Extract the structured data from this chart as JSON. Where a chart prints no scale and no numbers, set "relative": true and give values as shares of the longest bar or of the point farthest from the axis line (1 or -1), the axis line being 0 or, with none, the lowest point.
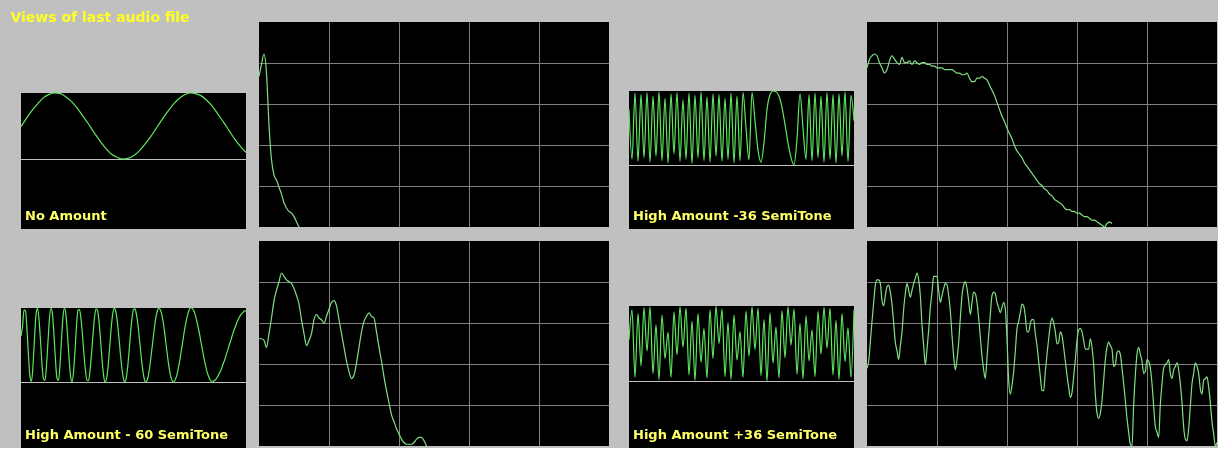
{
  "chart_data": [
    {
      "type": "line",
      "relative": true,
      "title": "Views of last audio file",
      "annotations": [
        "No Amount"
      ],
      "tick_labels": false,
      "categories": [
        null,
        null,
        null,
        null,
        null,
        null,
        null,
        null,
        null,
        null,
        null,
        null,
        null,
        null,
        null,
        null,
        null,
        null,
        null,
        null,
        null,
        null,
        null,
        null,
        null,
        null,
        null,
        null,
        null,
        null,
        null,
        null,
        null,
        null,
        null,
        null,
        null,
        null,
        null,
        null,
        null
      ],
      "series": [
        {
          "color": "#5fe85f",
          "values": [
            0.49,
            0.62,
            0.74,
            0.84,
            0.93,
            0.98,
            1.0,
            0.99,
            0.94,
            0.87,
            0.77,
            0.65,
            0.53,
            0.4,
            0.28,
            0.17,
            0.08,
            0.03,
            0.0,
            0.01,
            0.05,
            0.12,
            0.22,
            0.33,
            0.46,
            0.59,
            0.71,
            0.82,
            0.91,
            0.97,
            1.0,
            0.99,
            0.96,
            0.89,
            0.8,
            0.68,
            0.56,
            0.43,
            0.3,
            0.19,
            0.1
          ]
        }
      ]
    },
    {
      "type": "line",
      "relative": true,
      "grid": true,
      "tick_labels": false,
      "categories": [
        null,
        null,
        null,
        null,
        null,
        null,
        null,
        null,
        null,
        null,
        null,
        null,
        null,
        null,
        null,
        null,
        null,
        null,
        null,
        null,
        null,
        null,
        null,
        null,
        null,
        null,
        null,
        null,
        null,
        null,
        null,
        null,
        null,
        null,
        null,
        null,
        null,
        null,
        null,
        null,
        null,
        null,
        null,
        null,
        null,
        null,
        null,
        null,
        null,
        null,
        null,
        null,
        null,
        null,
        null,
        null,
        null,
        null,
        null,
        null,
        null,
        null,
        null,
        null,
        null,
        null,
        null,
        null,
        null,
        null,
        null,
        null,
        null,
        null,
        null,
        null,
        null,
        null,
        null,
        null,
        null,
        null,
        null,
        null,
        null,
        null,
        null,
        null,
        null,
        null,
        null,
        null,
        null,
        null,
        null,
        null,
        null,
        null,
        null,
        null,
        null,
        null,
        null,
        null,
        null,
        null,
        null,
        null,
        null,
        null,
        null,
        null,
        null,
        null,
        null,
        null,
        null,
        null,
        null,
        null,
        null,
        null,
        null,
        null,
        null,
        null,
        null,
        null,
        null,
        null,
        null,
        null,
        null,
        null,
        null,
        null,
        null,
        null,
        null,
        null,
        null
      ],
      "series": [
        {
          "color": "#80e080",
          "values": [
            0.87,
            0.94,
            1.0,
            0.89,
            0.59,
            0.39,
            0.3,
            0.27,
            0.23,
            0.19,
            0.14,
            0.11,
            0.09,
            0.08,
            0.06,
            0.03,
            0.0,
            null,
            null,
            null,
            null,
            null,
            null,
            null,
            null,
            null,
            null,
            null,
            null,
            null,
            null,
            null,
            null,
            null,
            null,
            null,
            null,
            null,
            null,
            null,
            null,
            null,
            null,
            null,
            null,
            null,
            null,
            null,
            null,
            null,
            null,
            null,
            null,
            null,
            null,
            null,
            null,
            null,
            null,
            null,
            null,
            null,
            null,
            null,
            null,
            null,
            null,
            null,
            null,
            null,
            null,
            null,
            null,
            null,
            null,
            null,
            null,
            null,
            null,
            null,
            null,
            null,
            null,
            null,
            null,
            null,
            null,
            null,
            null,
            null,
            null,
            null,
            null,
            null,
            null,
            null,
            null,
            null,
            null,
            null,
            null,
            null,
            null,
            null,
            null,
            null,
            null,
            null,
            null,
            null,
            null,
            null,
            null,
            null,
            null,
            null,
            null,
            null,
            null,
            null,
            null,
            null,
            null,
            null,
            null,
            null,
            null,
            null,
            null,
            null,
            null,
            null,
            null,
            null,
            null,
            null,
            null,
            null,
            null,
            null,
            null
          ]
        }
      ]
    },
    {
      "type": "line",
      "relative": true,
      "annotations": [
        "High Amount -36 SemiTone"
      ],
      "tick_labels": false,
      "categories": [
        null,
        null,
        null,
        null,
        null,
        null,
        null,
        null,
        null,
        null,
        null,
        null,
        null,
        null,
        null,
        null,
        null,
        null,
        null,
        null,
        null,
        null,
        null,
        null,
        null,
        null,
        null,
        null,
        null,
        null,
        null,
        null,
        null,
        null,
        null,
        null,
        null,
        null,
        null,
        null,
        null,
        null,
        null,
        null,
        null,
        null,
        null,
        null,
        null,
        null,
        null,
        null,
        null,
        null,
        null,
        null,
        null,
        null,
        null,
        null,
        null,
        null,
        null,
        null,
        null,
        null,
        null,
        null,
        null,
        null,
        null,
        null,
        null,
        null,
        null,
        null
      ],
      "series": [
        {
          "color": "#5fe85f",
          "values": [
            0.75,
            0.08,
            0.97,
            0.05,
            0.95,
            0.1,
            0.98,
            0.04,
            0.93,
            0.12,
            0.99,
            0.06,
            0.9,
            0.03,
            0.96,
            0.15,
            0.98,
            0.05,
            0.88,
            0.08,
            0.97,
            0.02,
            0.94,
            0.1,
            0.99,
            0.06,
            0.92,
            0.04,
            0.96,
            0.12,
            0.95,
            0.05,
            0.9,
            0.08,
            0.97,
            0.03,
            0.93,
            0.06,
            0.98,
            0.5,
            0.07,
            0.98,
            0.6,
            0.2,
            0.04,
            0.3,
            0.75,
            0.95,
            1.0,
            0.99,
            0.93,
            0.78,
            0.55,
            0.3,
            0.1,
            0.0,
            0.35,
            0.96,
            0.5,
            0.08,
            0.95,
            0.06,
            0.97,
            0.1,
            0.93,
            0.04,
            0.98,
            0.08,
            0.95,
            0.03,
            0.96,
            0.12,
            0.99,
            0.05,
            0.94,
            0.6
          ]
        }
      ]
    },
    {
      "type": "line",
      "relative": true,
      "grid": true,
      "tick_labels": false,
      "categories": [
        null,
        null,
        null,
        null,
        null,
        null,
        null,
        null,
        null,
        null,
        null,
        null,
        null,
        null,
        null,
        null,
        null,
        null,
        null,
        null,
        null,
        null,
        null,
        null,
        null,
        null,
        null,
        null,
        null,
        null,
        null,
        null,
        null,
        null,
        null,
        null,
        null,
        null,
        null,
        null,
        null,
        null,
        null,
        null,
        null,
        null,
        null,
        null,
        null,
        null,
        null,
        null,
        null,
        null,
        null,
        null,
        null,
        null,
        null,
        null,
        null,
        null,
        null,
        null,
        null,
        null,
        null,
        null,
        null,
        null,
        null,
        null,
        null,
        null,
        null,
        null,
        null,
        null,
        null,
        null,
        null,
        null,
        null,
        null,
        null,
        null,
        null,
        null,
        null,
        null,
        null,
        null,
        null,
        null,
        null,
        null,
        null,
        null,
        null,
        null,
        null,
        null,
        null,
        null,
        null,
        null,
        null,
        null,
        null,
        null,
        null,
        null,
        null,
        null,
        null,
        null,
        null,
        null,
        null,
        null,
        null,
        null,
        null,
        null,
        null,
        null,
        null,
        null,
        null,
        null,
        null,
        null,
        null,
        null,
        null,
        null,
        null,
        null,
        null,
        null,
        null
      ],
      "series": [
        {
          "color": "#80e080",
          "values": [
            0.92,
            0.97,
            0.99,
            1.0,
            0.99,
            0.95,
            0.92,
            0.89,
            0.91,
            0.96,
            0.99,
            0.97,
            0.95,
            0.94,
            0.98,
            0.95,
            0.95,
            0.96,
            0.94,
            0.96,
            0.95,
            0.94,
            0.95,
            0.95,
            0.94,
            0.94,
            0.93,
            0.93,
            0.92,
            0.92,
            0.92,
            0.91,
            0.91,
            0.91,
            0.91,
            0.9,
            0.89,
            0.89,
            0.88,
            0.88,
            0.89,
            0.86,
            0.84,
            0.84,
            0.86,
            0.86,
            0.87,
            0.86,
            0.85,
            0.82,
            0.79,
            0.76,
            0.72,
            0.68,
            0.64,
            0.61,
            0.57,
            0.54,
            0.51,
            0.47,
            0.44,
            0.42,
            0.4,
            0.37,
            0.35,
            0.33,
            0.31,
            0.29,
            0.27,
            0.25,
            0.24,
            0.22,
            0.21,
            0.19,
            0.18,
            0.16,
            0.15,
            0.14,
            0.13,
            0.11,
            0.1,
            0.1,
            0.09,
            0.09,
            0.08,
            0.08,
            0.07,
            0.06,
            0.06,
            0.05,
            0.04,
            0.04,
            0.03,
            0.02,
            0.01,
            0.0,
            0.02,
            0.03,
            0.02,
            null,
            null,
            null,
            null,
            null,
            null,
            null,
            null,
            null,
            null,
            null,
            null,
            null,
            null,
            null,
            null,
            null,
            null,
            null,
            null,
            null,
            null,
            null,
            null,
            null,
            null,
            null,
            null,
            null,
            null,
            null,
            null,
            null,
            null,
            null,
            null,
            null,
            null,
            null,
            null,
            null,
            null
          ]
        }
      ]
    },
    {
      "type": "line",
      "relative": true,
      "annotations": [
        "High Amount - 60 SemiTone"
      ],
      "tick_labels": false,
      "categories": [
        null,
        null,
        null,
        null,
        null,
        null,
        null,
        null,
        null,
        null,
        null,
        null,
        null,
        null,
        null,
        null,
        null,
        null,
        null,
        null,
        null,
        null,
        null,
        null,
        null,
        null,
        null,
        null,
        null,
        null,
        null,
        null,
        null,
        null,
        null,
        null,
        null,
        null,
        null,
        null,
        null,
        null,
        null,
        null,
        null,
        null,
        null,
        null,
        null,
        null,
        null,
        null,
        null,
        null,
        null,
        null,
        null,
        null,
        null,
        null,
        null,
        null,
        null,
        null,
        null,
        null,
        null,
        null,
        null,
        null,
        null,
        null,
        null,
        null,
        null,
        null,
        null,
        null,
        null,
        null,
        null,
        null,
        null,
        null,
        null,
        null,
        null,
        null,
        null,
        null,
        null,
        null,
        null,
        null,
        null,
        null,
        null,
        null,
        null,
        null,
        null,
        null,
        null,
        null,
        null,
        null,
        null,
        null,
        null,
        null,
        null,
        null,
        null,
        null,
        null,
        null,
        null,
        null,
        null,
        null,
        null,
        null,
        null,
        null,
        null,
        null,
        null,
        null,
        null,
        null,
        null,
        null,
        null,
        null,
        null,
        null,
        null,
        null,
        null,
        null,
        null,
        null,
        null,
        null,
        null,
        null,
        null,
        null,
        null,
        null,
        null
      ],
      "series": [
        {
          "color": "#5fe85f",
          "values": [
            0.62,
            0.75,
            0.97,
            0.96,
            0.71,
            0.35,
            0.07,
            0.01,
            0.22,
            0.59,
            0.91,
            1.0,
            0.85,
            0.56,
            0.24,
            0.04,
            0.02,
            0.22,
            0.55,
            0.86,
            1.0,
            0.91,
            0.63,
            0.29,
            0.05,
            0.02,
            0.23,
            0.57,
            0.88,
            1.0,
            0.9,
            0.64,
            0.33,
            0.09,
            0.0,
            0.13,
            0.42,
            0.76,
            0.97,
            0.98,
            0.85,
            0.63,
            0.37,
            0.15,
            0.02,
            0.02,
            0.15,
            0.38,
            0.64,
            0.87,
            0.99,
            0.97,
            0.82,
            0.58,
            0.31,
            0.1,
            0.0,
            0.04,
            0.2,
            0.44,
            0.7,
            0.9,
            1.0,
            0.97,
            0.85,
            0.66,
            0.44,
            0.23,
            0.08,
            0.0,
            0.04,
            0.18,
            0.4,
            0.65,
            0.86,
            0.98,
            0.99,
            0.91,
            0.77,
            0.57,
            0.37,
            0.19,
            0.06,
            0.0,
            0.02,
            0.1,
            0.23,
            0.4,
            0.57,
            0.74,
            0.88,
            0.97,
            1.0,
            0.97,
            0.9,
            0.78,
            0.63,
            0.46,
            0.3,
            0.16,
            0.06,
            0.01,
            0.0,
            0.04,
            0.1,
            0.2,
            0.31,
            0.44,
            0.57,
            0.7,
            0.81,
            0.9,
            0.97,
            1.0,
            1.0,
            0.97,
            0.92,
            0.84,
            0.75,
            0.65,
            0.54,
            0.43,
            0.32,
            0.23,
            0.14,
            0.08,
            0.03,
            0.01,
            0.01,
            0.02,
            0.04,
            0.07,
            0.11,
            0.15,
            0.2,
            0.26,
            0.31,
            0.38,
            0.44,
            0.51,
            0.57,
            0.64,
            0.7,
            0.75,
            0.81,
            0.85,
            0.89,
            0.92,
            0.94,
            0.96,
            0.96
          ]
        }
      ]
    },
    {
      "type": "line",
      "relative": true,
      "grid": true,
      "tick_labels": false,
      "categories": [
        null,
        null,
        null,
        null,
        null,
        null,
        null,
        null,
        null,
        null,
        null,
        null,
        null,
        null,
        null,
        null,
        null,
        null,
        null,
        null,
        null,
        null,
        null,
        null,
        null,
        null,
        null,
        null,
        null,
        null,
        null,
        null,
        null,
        null,
        null,
        null,
        null,
        null,
        null,
        null,
        null,
        null,
        null,
        null,
        null,
        null,
        null,
        null,
        null,
        null,
        null,
        null,
        null,
        null,
        null,
        null,
        null,
        null,
        null,
        null,
        null,
        null,
        null,
        null,
        null,
        null,
        null,
        null,
        null,
        null,
        null,
        null,
        null,
        null,
        null,
        null,
        null,
        null,
        null,
        null,
        null,
        null,
        null,
        null,
        null,
        null,
        null,
        null,
        null,
        null,
        null,
        null,
        null,
        null,
        null,
        null,
        null,
        null,
        null,
        null,
        null,
        null,
        null,
        null,
        null,
        null,
        null,
        null,
        null,
        null,
        null,
        null,
        null,
        null,
        null,
        null,
        null,
        null,
        null,
        null,
        null,
        null,
        null,
        null,
        null,
        null,
        null,
        null,
        null,
        null,
        null,
        null,
        null,
        null,
        null,
        null,
        null,
        null,
        null,
        null,
        null
      ],
      "series": [
        {
          "color": "#80e080",
          "values": [
            0.62,
            0.62,
            0.61,
            0.57,
            0.65,
            0.74,
            0.84,
            0.9,
            0.95,
            1.0,
            0.98,
            0.96,
            0.95,
            0.94,
            0.91,
            0.87,
            0.82,
            0.73,
            0.65,
            0.58,
            0.61,
            0.65,
            0.73,
            0.76,
            0.74,
            0.73,
            0.71,
            0.75,
            0.79,
            0.83,
            0.84,
            0.81,
            0.73,
            0.65,
            0.57,
            0.49,
            0.43,
            0.39,
            0.41,
            0.48,
            0.57,
            0.66,
            0.72,
            0.75,
            0.77,
            0.75,
            0.74,
            0.66,
            0.57,
            0.49,
            0.4,
            0.32,
            0.25,
            0.18,
            0.14,
            0.1,
            0.07,
            0.04,
            0.02,
            0.01,
            0.01,
            0.01,
            0.02,
            0.04,
            0.05,
            0.05,
            0.03,
            0.0,
            null,
            null,
            null,
            null,
            null,
            null,
            null,
            null,
            null,
            null,
            null,
            null,
            null,
            null,
            null,
            null,
            null,
            null,
            null,
            null,
            null,
            null,
            null,
            null,
            null,
            null,
            null,
            null,
            null,
            null,
            null,
            null,
            null,
            null,
            null,
            null,
            null,
            null,
            null,
            null,
            null,
            null,
            null,
            null,
            null,
            null,
            null,
            null,
            null,
            null,
            null,
            null,
            null,
            null,
            null,
            null,
            null,
            null,
            null,
            null,
            null,
            null,
            null,
            null,
            null,
            null,
            null,
            null,
            null,
            null,
            null,
            null,
            null
          ]
        }
      ]
    },
    {
      "type": "line",
      "relative": true,
      "annotations": [
        "High Amount +36 SemiTone"
      ],
      "tick_labels": false,
      "categories": [
        null,
        null,
        null,
        null,
        null,
        null,
        null,
        null,
        null,
        null,
        null,
        null,
        null,
        null,
        null,
        null,
        null,
        null,
        null,
        null,
        null,
        null,
        null,
        null,
        null,
        null,
        null,
        null,
        null,
        null,
        null,
        null,
        null,
        null,
        null,
        null,
        null,
        null,
        null,
        null,
        null,
        null,
        null,
        null,
        null,
        null,
        null,
        null,
        null,
        null,
        null,
        null,
        null,
        null,
        null,
        null,
        null,
        null,
        null,
        null,
        null,
        null,
        null,
        null,
        null,
        null,
        null,
        null,
        null,
        null,
        null,
        null,
        null,
        null,
        null,
        null
      ],
      "series": [
        {
          "color": "#5fe85f",
          "values": [
            0.55,
            0.95,
            0.05,
            0.9,
            0.2,
            0.98,
            0.4,
            0.99,
            0.1,
            0.75,
            0.02,
            0.88,
            0.3,
            0.65,
            0.05,
            0.92,
            0.35,
            0.99,
            0.45,
            0.97,
            0.08,
            0.8,
            0.01,
            0.9,
            0.25,
            0.7,
            0.04,
            0.95,
            0.3,
            1.0,
            0.5,
            0.96,
            0.06,
            0.78,
            0.02,
            0.88,
            0.28,
            0.66,
            0.05,
            0.93,
            0.33,
            0.99,
            0.42,
            0.97,
            0.07,
            0.82,
            0.0,
            0.91,
            0.24,
            0.72,
            0.04,
            0.94,
            0.31,
            0.99,
            0.48,
            0.96,
            0.09,
            0.77,
            0.03,
            0.87,
            0.27,
            0.68,
            0.06,
            0.93,
            0.36,
            0.98,
            0.44,
            0.97,
            0.08,
            0.81,
            0.02,
            0.9,
            0.26,
            0.71,
            0.05,
            0.95
          ]
        }
      ]
    },
    {
      "type": "line",
      "relative": true,
      "grid": true,
      "tick_labels": false,
      "categories": [
        null,
        null,
        null,
        null,
        null,
        null,
        null,
        null,
        null,
        null,
        null,
        null,
        null,
        null,
        null,
        null,
        null,
        null,
        null,
        null,
        null,
        null,
        null,
        null,
        null,
        null,
        null,
        null,
        null,
        null,
        null,
        null,
        null,
        null,
        null,
        null,
        null,
        null,
        null,
        null,
        null,
        null,
        null,
        null,
        null,
        null,
        null,
        null,
        null,
        null,
        null,
        null,
        null,
        null,
        null,
        null,
        null,
        null,
        null,
        null,
        null,
        null,
        null,
        null,
        null,
        null,
        null,
        null,
        null,
        null,
        null,
        null,
        null,
        null,
        null,
        null,
        null,
        null,
        null,
        null,
        null,
        null,
        null,
        null,
        null,
        null,
        null,
        null,
        null,
        null,
        null,
        null,
        null,
        null,
        null,
        null,
        null,
        null,
        null,
        null,
        null,
        null,
        null,
        null,
        null,
        null,
        null,
        null,
        null,
        null,
        null,
        null,
        null,
        null,
        null,
        null,
        null,
        null,
        null,
        null,
        null,
        null,
        null,
        null,
        null,
        null,
        null,
        null,
        null,
        null,
        null,
        null,
        null,
        null,
        null,
        null,
        null,
        null,
        null,
        null,
        null,
        null,
        null,
        null,
        null,
        null,
        null,
        null,
        null,
        null,
        null,
        null,
        null,
        null,
        null,
        null,
        null,
        null,
        null,
        null,
        null,
        null,
        null,
        null,
        null,
        null,
        null,
        null,
        null,
        null,
        null,
        null,
        null,
        null,
        null,
        null,
        null,
        null,
        null,
        null,
        null,
        null,
        null,
        null,
        null,
        null,
        null,
        null,
        null,
        null,
        null,
        null,
        null,
        null,
        null,
        null,
        null,
        null,
        null,
        null,
        null,
        null,
        null,
        null,
        null,
        null,
        null,
        null,
        null,
        null,
        null
      ],
      "series": [
        {
          "color": "#80e080",
          "values": [
            0.45,
            0.49,
            0.6,
            0.72,
            0.83,
            0.93,
            0.96,
            0.96,
            0.94,
            0.84,
            0.81,
            0.87,
            0.92,
            0.93,
            0.89,
            0.82,
            0.71,
            0.6,
            0.55,
            0.5,
            0.58,
            0.66,
            0.79,
            0.88,
            0.94,
            0.9,
            0.86,
            0.9,
            0.94,
            0.97,
            1.0,
            0.96,
            0.87,
            0.7,
            0.58,
            0.47,
            0.56,
            0.67,
            0.8,
            0.89,
            0.98,
            0.98,
            0.98,
            0.9,
            0.83,
            0.87,
            0.91,
            0.94,
            0.93,
            0.87,
            0.78,
            0.64,
            0.52,
            0.44,
            0.5,
            0.6,
            0.74,
            0.87,
            0.93,
            0.95,
            0.91,
            0.84,
            0.76,
            0.83,
            0.89,
            0.88,
            0.83,
            0.74,
            0.63,
            0.52,
            0.44,
            0.39,
            0.51,
            0.64,
            0.76,
            0.87,
            0.89,
            0.88,
            0.83,
            0.8,
            0.77,
            0.8,
            0.83,
            0.79,
            0.62,
            0.38,
            0.3,
            0.35,
            0.43,
            0.55,
            0.68,
            0.72,
            0.77,
            0.82,
            0.81,
            0.75,
            0.66,
            0.66,
            0.71,
            0.73,
            0.73,
            0.65,
            0.58,
            0.49,
            0.4,
            0.32,
            0.32,
            0.43,
            0.53,
            0.62,
            0.7,
            0.74,
            0.71,
            0.66,
            0.59,
            0.6,
            0.66,
            0.64,
            0.57,
            0.49,
            0.41,
            0.34,
            0.28,
            0.31,
            0.4,
            0.5,
            0.61,
            0.67,
            0.68,
            0.66,
            0.61,
            0.56,
            0.56,
            0.56,
            0.62,
            0.57,
            0.47,
            0.3,
            0.19,
            0.16,
            0.19,
            0.26,
            0.38,
            0.5,
            0.57,
            0.6,
            0.58,
            0.56,
            0.46,
            0.47,
            0.54,
            0.55,
            0.53,
            0.45,
            0.36,
            0.26,
            0.16,
            0.08,
            0.01,
            0.0,
            0.24,
            0.41,
            0.53,
            0.57,
            0.53,
            0.49,
            0.42,
            0.43,
            0.5,
            0.49,
            0.45,
            0.36,
            0.23,
            0.11,
            0.08,
            0.05,
            0.24,
            0.36,
            0.45,
            0.47,
            0.48,
            0.5,
            0.42,
            0.39,
            0.44,
            0.46,
            0.48,
            0.44,
            0.36,
            0.25,
            0.11,
            0.04,
            0.03,
            0.1,
            0.23,
            0.36,
            0.42,
            0.48,
            0.46,
            0.42,
            0.33,
            0.3,
            0.38,
            0.39,
            0.4,
            0.34,
            0.25,
            0.14,
            0.07,
            0.0,
            0.02
          ]
        }
      ]
    }
  ]
}
